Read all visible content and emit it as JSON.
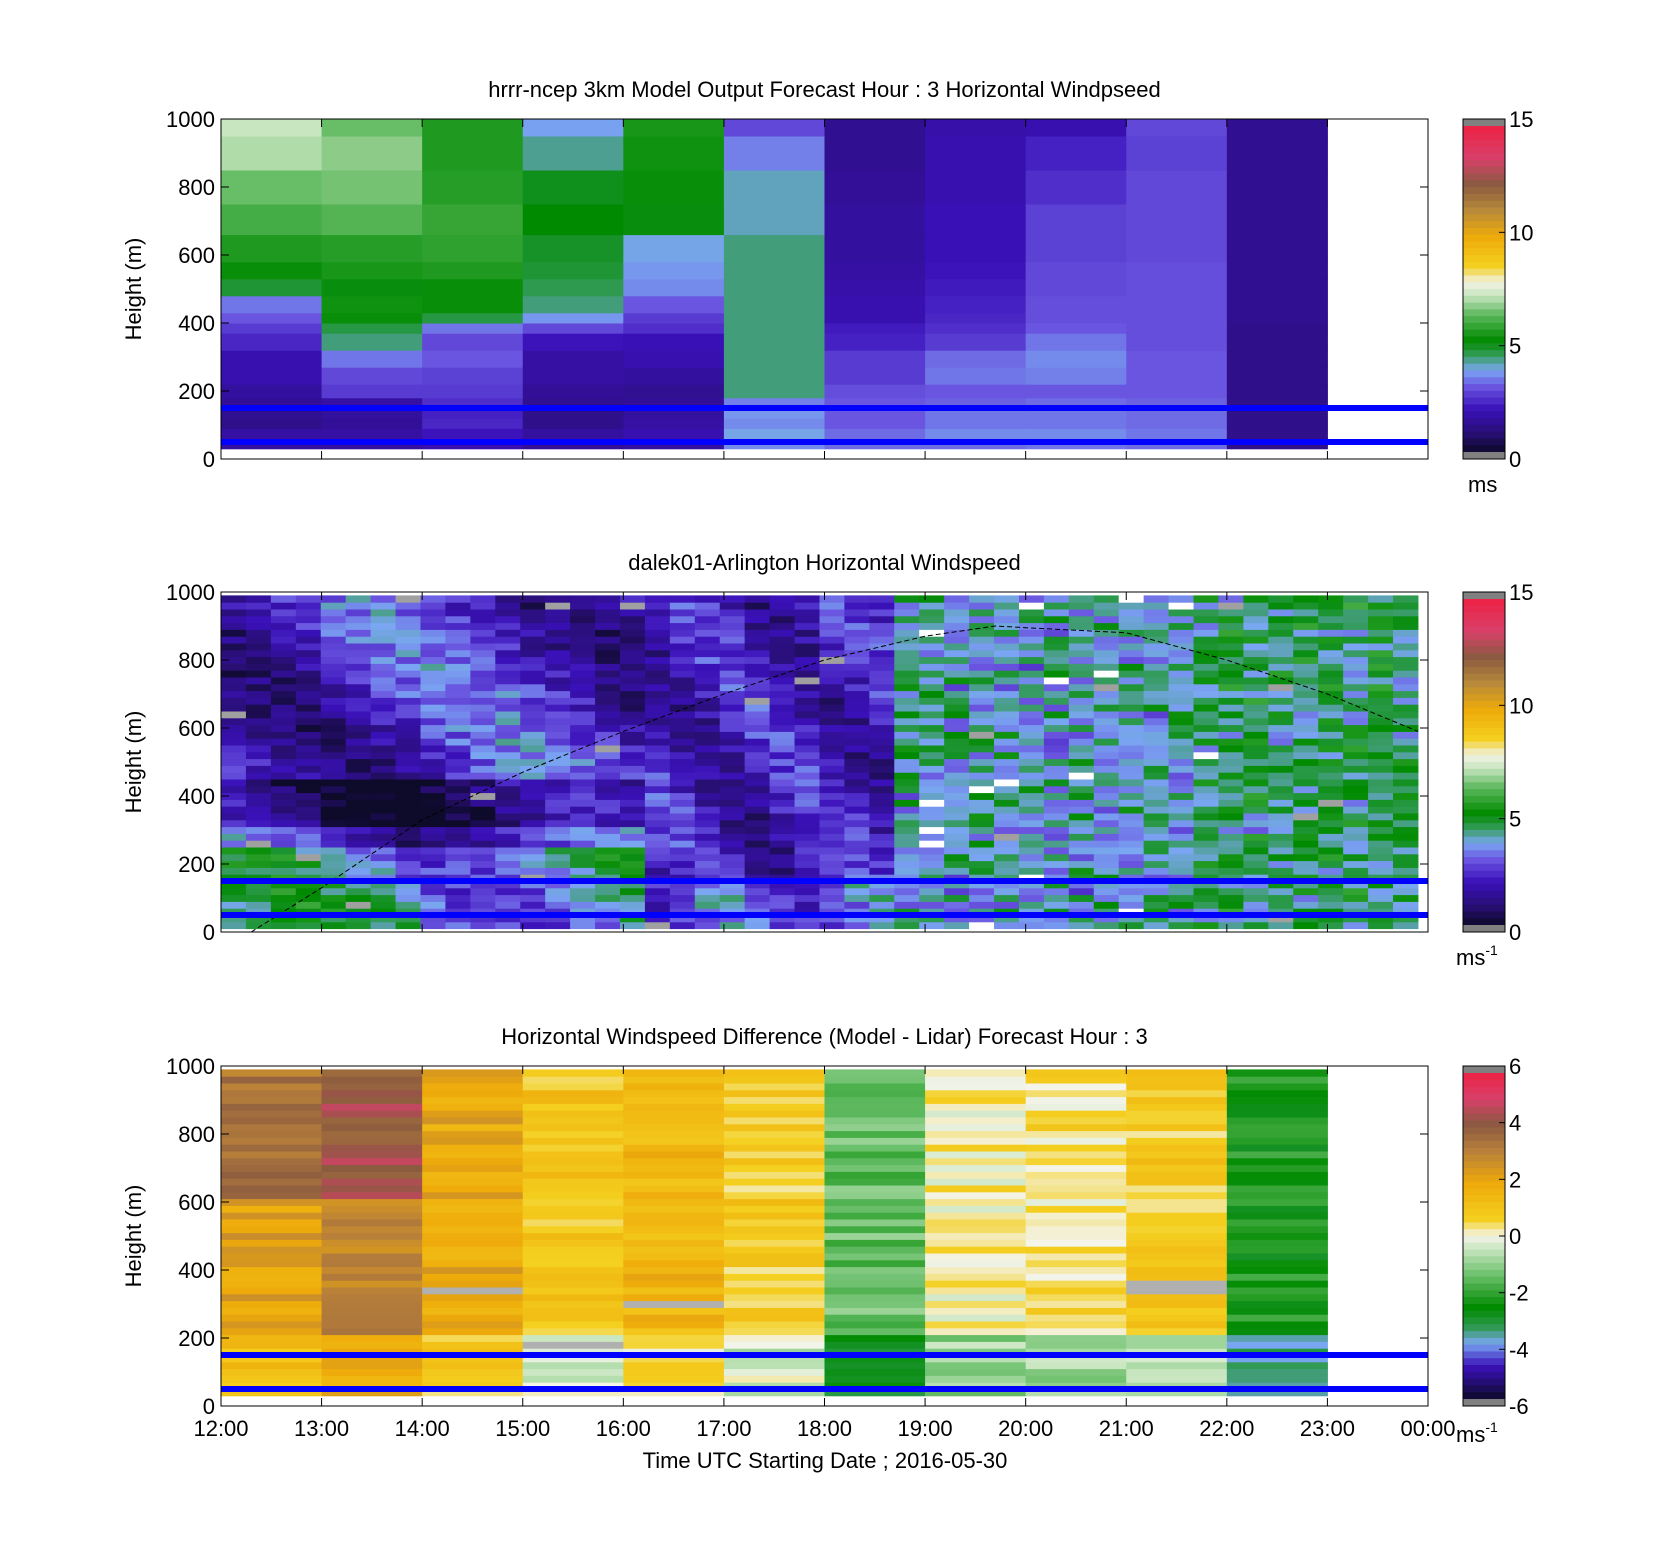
{
  "figure": {
    "xlabel": "Time UTC  Starting Date ; 2016-05-30",
    "x_ticks": [
      "12:00",
      "13:00",
      "14:00",
      "15:00",
      "16:00",
      "17:00",
      "18:00",
      "19:00",
      "20:00",
      "21:00",
      "22:00",
      "23:00",
      "00:00"
    ],
    "ref_heights_m": [
      50,
      150
    ],
    "ref_line_color": "#0000ff"
  },
  "chart_data": [
    {
      "type": "heatmap",
      "title": "hrrr-ncep 3km Model Output   Forecast Hour : 3 Horizontal Windpseed",
      "ylabel": "Height (m)",
      "ylim": [
        0,
        1000
      ],
      "y_ticks": [
        0,
        200,
        400,
        600,
        800,
        1000
      ],
      "colorbar": {
        "range": [
          0,
          15
        ],
        "ticks": [
          0,
          5,
          10,
          15
        ],
        "unit": "ms",
        "unit_sup": "",
        "palette": "speed"
      },
      "x_hours": [
        12,
        13,
        14,
        15,
        16,
        17,
        18,
        19,
        20,
        21,
        22,
        23
      ],
      "y_edges": [
        30,
        60,
        90,
        120,
        150,
        180,
        220,
        270,
        320,
        370,
        400,
        430,
        480,
        530,
        580,
        660,
        750,
        850,
        950,
        1000
      ],
      "values": [
        [
          1.5,
          1.5,
          1.8,
          1.4,
          1.5,
          3.5,
          3.2,
          3.2,
          3.3,
          3.2,
          1.2
        ],
        [
          1.6,
          1.6,
          2.0,
          1.5,
          1.8,
          3.8,
          3.2,
          3.5,
          3.5,
          3.3,
          1.2
        ],
        [
          1.2,
          1.4,
          2.3,
          1.2,
          1.6,
          3.5,
          3.0,
          3.3,
          3.3,
          3.2,
          1.2
        ],
        [
          1.3,
          1.5,
          2.2,
          1.2,
          1.5,
          3.6,
          3.0,
          3.3,
          3.3,
          3.2,
          1.2
        ],
        [
          1.4,
          1.6,
          2.4,
          1.3,
          1.4,
          3.4,
          3.0,
          3.1,
          3.2,
          3.1,
          1.2
        ],
        [
          1.5,
          2.6,
          2.6,
          1.4,
          1.3,
          4.3,
          2.9,
          3.0,
          3.0,
          3.0,
          1.2
        ],
        [
          1.8,
          2.8,
          2.7,
          1.6,
          1.5,
          4.3,
          2.6,
          3.3,
          3.4,
          3.0,
          1.2
        ],
        [
          1.8,
          3.3,
          3.0,
          1.6,
          1.8,
          4.3,
          2.6,
          3.2,
          3.5,
          3.0,
          1.2
        ],
        [
          2.3,
          4.3,
          2.8,
          2.0,
          1.9,
          4.3,
          2.2,
          2.6,
          3.3,
          2.9,
          1.2
        ],
        [
          2.6,
          4.6,
          3.3,
          2.8,
          2.4,
          4.3,
          2.1,
          2.4,
          3.0,
          2.9,
          1.2
        ],
        [
          3.0,
          5.2,
          4.6,
          3.6,
          2.6,
          4.3,
          1.8,
          2.3,
          2.9,
          2.9,
          1.3
        ],
        [
          3.3,
          5.3,
          5.2,
          4.3,
          3.0,
          4.3,
          1.8,
          2.2,
          2.9,
          2.9,
          1.3
        ],
        [
          4.7,
          5.0,
          5.2,
          4.5,
          3.5,
          4.3,
          1.7,
          2.1,
          2.8,
          2.9,
          1.3
        ],
        [
          5.2,
          5.4,
          5.5,
          4.7,
          3.6,
          4.3,
          1.6,
          2.0,
          2.8,
          2.9,
          1.3
        ],
        [
          5.5,
          5.6,
          5.7,
          4.8,
          3.8,
          4.3,
          1.5,
          1.9,
          2.7,
          2.8,
          1.3
        ],
        [
          6.0,
          6.2,
          5.8,
          5.1,
          5.0,
          4.0,
          1.5,
          1.9,
          2.7,
          2.8,
          1.3
        ],
        [
          6.4,
          6.5,
          5.6,
          4.9,
          5.2,
          4.0,
          1.4,
          1.8,
          2.4,
          2.8,
          1.3
        ],
        [
          7.0,
          6.7,
          5.5,
          4.2,
          5.3,
          3.4,
          1.3,
          1.8,
          2.2,
          2.7,
          1.3
        ],
        [
          7.2,
          6.4,
          5.5,
          3.7,
          5.4,
          2.8,
          1.3,
          1.7,
          1.8,
          2.8,
          1.3
        ]
      ]
    },
    {
      "type": "heatmap",
      "title": "dalek01-Arlington  Horizontal Windspeed",
      "ylabel": "Height (m)",
      "ylim": [
        0,
        1000
      ],
      "y_ticks": [
        0,
        200,
        400,
        600,
        800,
        1000
      ],
      "colorbar": {
        "range": [
          0,
          15
        ],
        "ticks": [
          0,
          5,
          10,
          15
        ],
        "unit": "ms",
        "unit_sup": "-1",
        "palette": "speed"
      },
      "x_start_hour": 12,
      "x_end_hour": 23.9,
      "column_count": 48,
      "bottom_m": 10,
      "top_m": 990,
      "row_height_m": 20,
      "curve_hours": [
        12.3,
        13,
        14,
        15,
        16,
        17,
        18,
        19,
        19.7,
        20,
        21,
        22,
        23,
        23.9
      ],
      "curve_heights_m": [
        0,
        130,
        330,
        470,
        590,
        700,
        800,
        870,
        900,
        895,
        880,
        800,
        700,
        590
      ]
    },
    {
      "type": "heatmap",
      "title": "Horizontal Windspeed Difference (Model - Lidar) Forecast Hour : 3",
      "ylabel": "Height (m)",
      "ylim": [
        0,
        1000
      ],
      "y_ticks": [
        0,
        200,
        400,
        600,
        800,
        1000
      ],
      "colorbar": {
        "range": [
          -6,
          6
        ],
        "ticks": [
          -6,
          -4,
          -2,
          0,
          2,
          4,
          6
        ],
        "unit": "ms",
        "unit_sup": "-1",
        "palette": "diff"
      },
      "x_hours": [
        12,
        13,
        14,
        15,
        16,
        17,
        18,
        19,
        20,
        21,
        22,
        23
      ],
      "column_means": [
        2.2,
        3.0,
        2.0,
        1.0,
        1.5,
        0.8,
        -1.5,
        0.2,
        0.4,
        0.8,
        -2.4
      ],
      "bottom_m": 30,
      "top_m": 990,
      "row_height_m": 20
    }
  ]
}
